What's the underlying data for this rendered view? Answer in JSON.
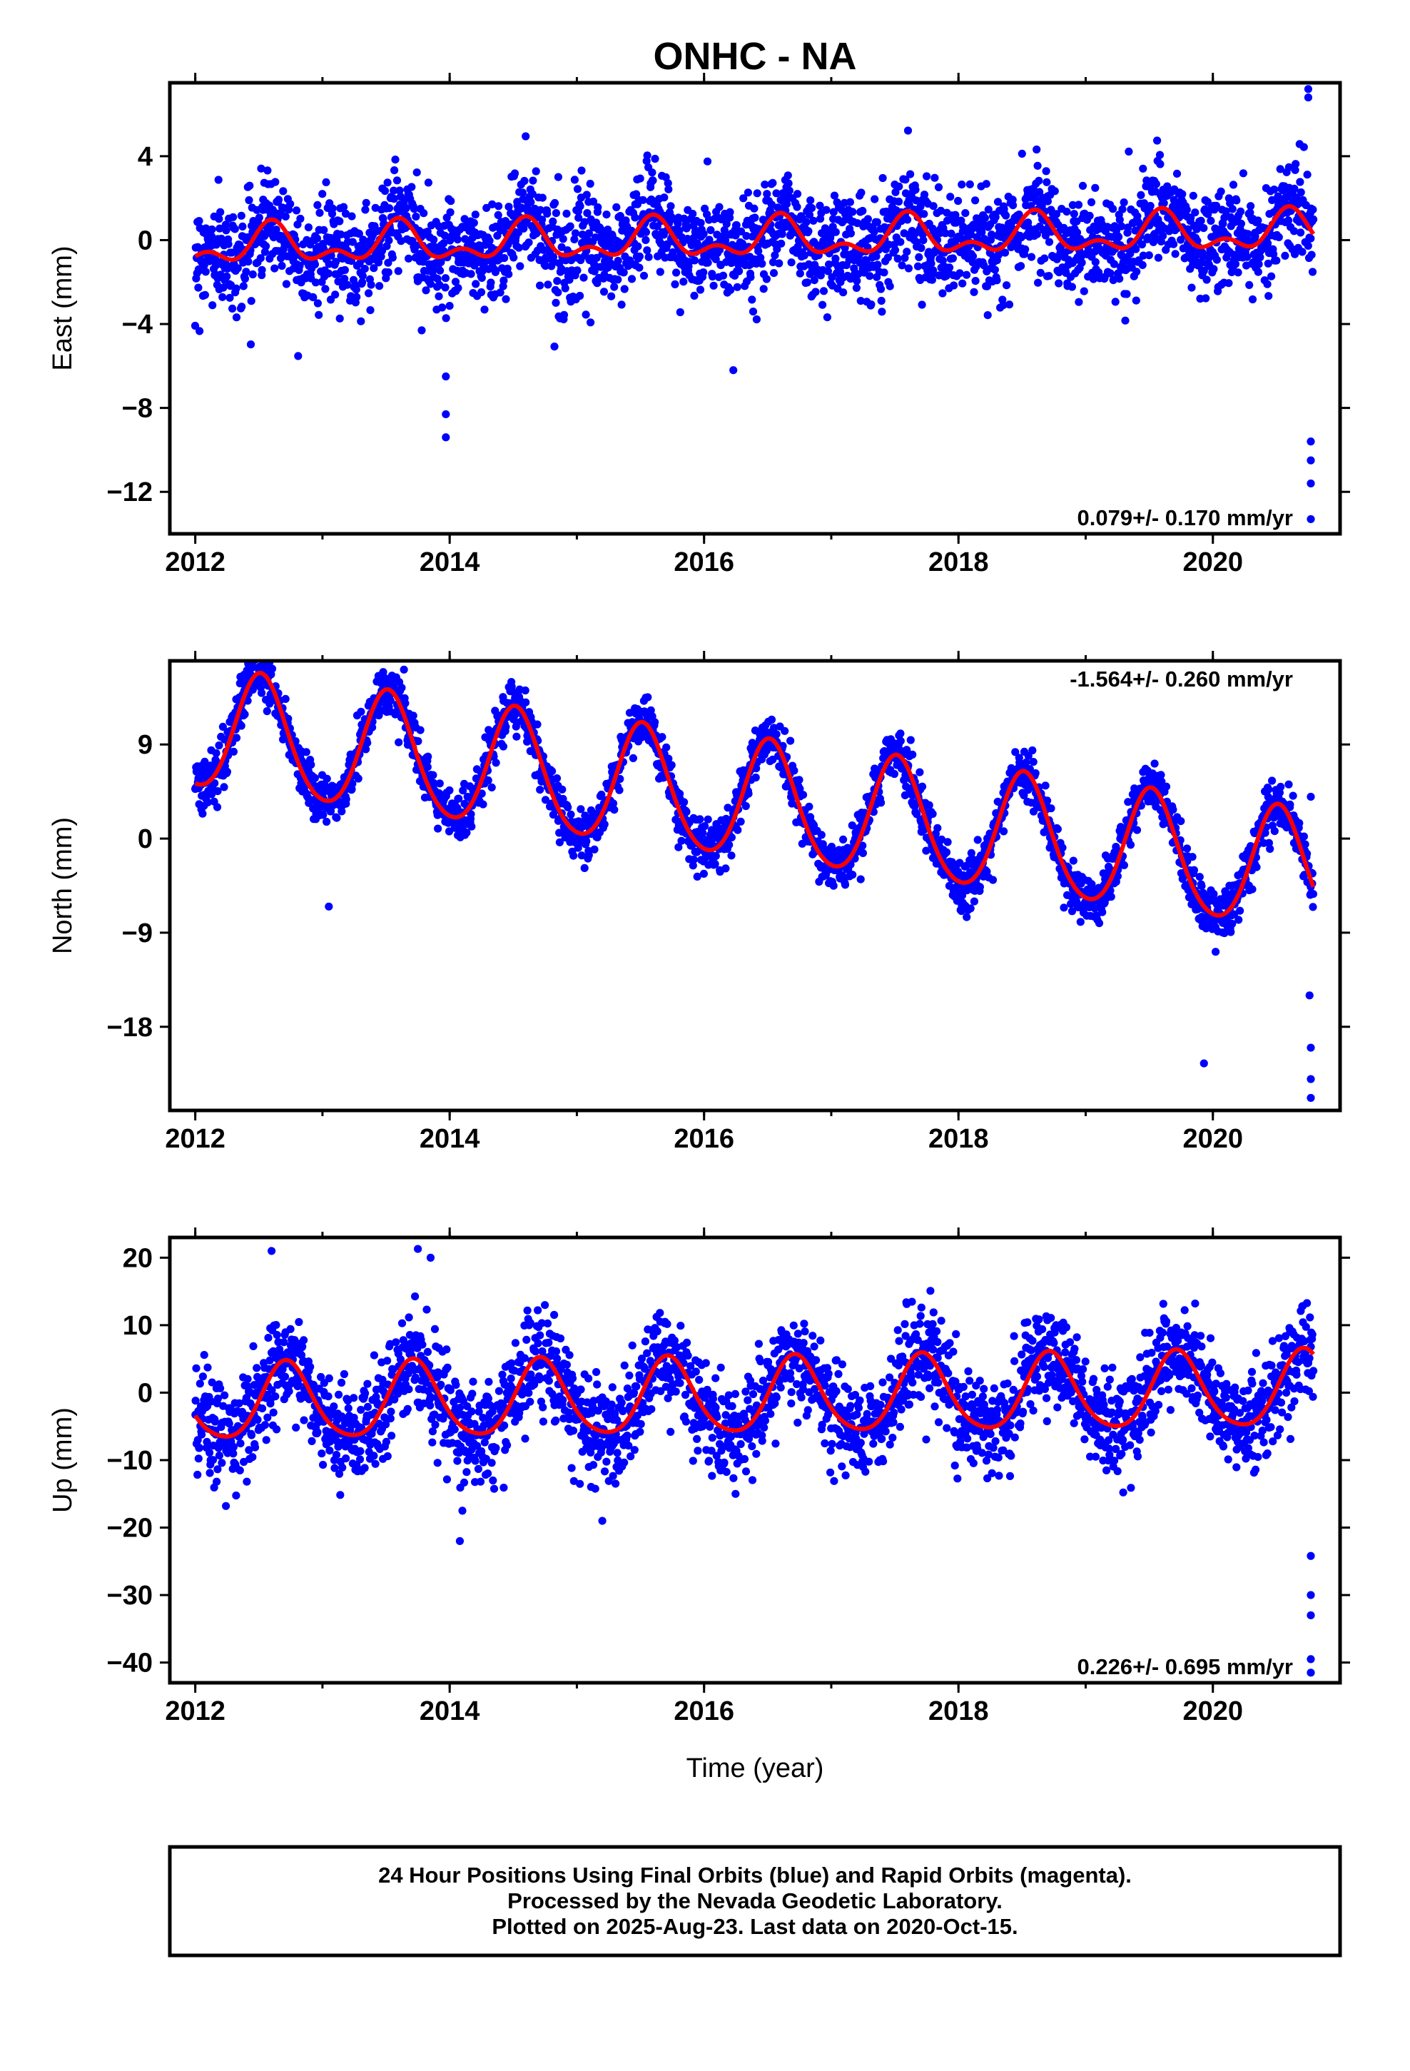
{
  "title": "ONHC - NA",
  "colors": {
    "points": "#0000ff",
    "fit": "#ff0000",
    "frame": "#000000"
  },
  "footer": {
    "line1": "24 Hour Positions Using Final Orbits (blue) and Rapid Orbits (magenta).",
    "line2": "Processed by the Nevada Geodetic Laboratory.",
    "line3": "Plotted on 2025-Aug-23. Last data on 2020-Oct-15."
  },
  "chart_data": [
    {
      "type": "scatter",
      "ylabel": "East (mm)",
      "xlabel": "",
      "xlim": [
        2011.8,
        2021.0
      ],
      "ylim": [
        -14,
        7.5
      ],
      "xticks": [
        "2012",
        "2014",
        "2016",
        "2018",
        "2020"
      ],
      "yticks": [
        "4",
        "0",
        "−4",
        "−8",
        "−12"
      ],
      "rate": "0.079+/- 0.170 mm/yr",
      "rate_position": "bottom-right",
      "fit": {
        "offset": 0.0,
        "trend": 0.079,
        "annual_amp": 0.75,
        "annual_peak": 0.6,
        "semiannual_amp": 0.5,
        "semiannual_peak": 0.1
      },
      "scatter_sd": 1.2,
      "date_range": [
        2012.0,
        2020.79
      ],
      "outliers": [
        {
          "x": 2013.97,
          "y": -6.5
        },
        {
          "x": 2013.97,
          "y": -8.3
        },
        {
          "x": 2013.97,
          "y": -9.4
        },
        {
          "x": 2016.23,
          "y": -6.2
        },
        {
          "x": 2013.78,
          "y": -4.3
        },
        {
          "x": 2020.75,
          "y": 7.2
        },
        {
          "x": 2020.75,
          "y": 6.8
        },
        {
          "x": 2020.77,
          "y": -9.6
        },
        {
          "x": 2020.77,
          "y": -10.5
        },
        {
          "x": 2020.77,
          "y": -11.6
        },
        {
          "x": 2020.77,
          "y": -13.3
        }
      ]
    },
    {
      "type": "scatter",
      "ylabel": "North (mm)",
      "xlabel": "",
      "xlim": [
        2011.8,
        2021.0
      ],
      "ylim": [
        -26,
        17
      ],
      "xticks": [
        "2012",
        "2014",
        "2016",
        "2018",
        "2020"
      ],
      "yticks": [
        "9",
        "0",
        "−9",
        "−18"
      ],
      "rate": "-1.564+/- 0.260 mm/yr",
      "rate_position": "top-right",
      "fit": {
        "offset": 4.1,
        "trend": -1.564,
        "annual_amp": 5.7,
        "annual_peak": 0.52,
        "semiannual_amp": 0.6,
        "semiannual_peak": 0.0
      },
      "scatter_sd": 1.2,
      "date_range": [
        2012.0,
        2020.79
      ],
      "outliers": [
        {
          "x": 2019.93,
          "y": -21.5
        },
        {
          "x": 2013.05,
          "y": -6.5
        },
        {
          "x": 2020.77,
          "y": 4.0
        },
        {
          "x": 2020.76,
          "y": -15.0
        },
        {
          "x": 2020.77,
          "y": -20.0
        },
        {
          "x": 2020.77,
          "y": -23.0
        },
        {
          "x": 2020.77,
          "y": -24.8
        }
      ]
    },
    {
      "type": "scatter",
      "ylabel": "Up (mm)",
      "xlabel": "Time (year)",
      "xlim": [
        2011.8,
        2021.0
      ],
      "ylim": [
        -43,
        23
      ],
      "xticks": [
        "2012",
        "2014",
        "2016",
        "2018",
        "2020"
      ],
      "yticks": [
        "20",
        "10",
        "0",
        "−10",
        "−20",
        "−30",
        "−40"
      ],
      "rate": "0.226+/- 0.695 mm/yr",
      "rate_position": "bottom-right",
      "fit": {
        "offset": -0.8,
        "trend": 0.226,
        "annual_amp": 5.6,
        "annual_peak": 0.72,
        "semiannual_amp": 0.8,
        "semiannual_peak": 0.2
      },
      "scatter_sd": 3.6,
      "date_range": [
        2012.0,
        2020.79
      ],
      "outliers": [
        {
          "x": 2012.6,
          "y": 21.0
        },
        {
          "x": 2013.75,
          "y": 21.3
        },
        {
          "x": 2013.85,
          "y": 20.0
        },
        {
          "x": 2014.08,
          "y": -22.0
        },
        {
          "x": 2014.1,
          "y": -17.5
        },
        {
          "x": 2015.2,
          "y": -19.0
        },
        {
          "x": 2020.77,
          "y": -24.2
        },
        {
          "x": 2020.77,
          "y": -30.0
        },
        {
          "x": 2020.77,
          "y": -33.0
        },
        {
          "x": 2020.77,
          "y": -39.5
        },
        {
          "x": 2020.77,
          "y": -41.5
        }
      ]
    }
  ]
}
